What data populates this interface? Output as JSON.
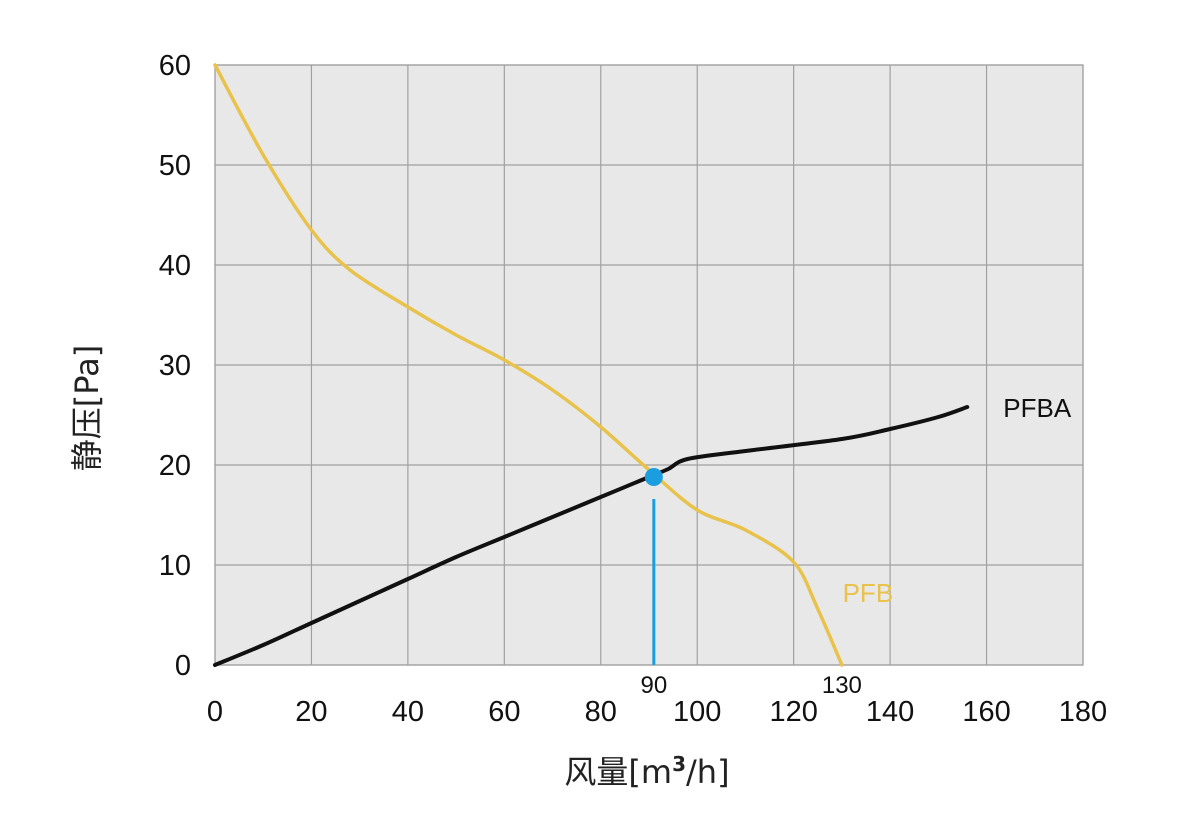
{
  "chart_data": {
    "type": "line",
    "xlabel": "风量[m³/h]",
    "xlabel_parts": {
      "main": "风量[m",
      "sup": "3",
      "tail": "/h]"
    },
    "ylabel": "静压[Pa]",
    "xlim": [
      0,
      180
    ],
    "ylim": [
      0,
      60
    ],
    "xticks": [
      0,
      20,
      40,
      60,
      80,
      100,
      120,
      140,
      160,
      180
    ],
    "yticks": [
      0,
      10,
      20,
      30,
      40,
      50,
      60
    ],
    "grid": true,
    "plot_background": "#e8e8e8",
    "grid_color": "#a0a0a0",
    "series": [
      {
        "name": "PFBA",
        "color": "#111111",
        "x": [
          0,
          10,
          20,
          30,
          40,
          50,
          60,
          70,
          80,
          90,
          94,
          98,
          110,
          130,
          140,
          150,
          156
        ],
        "y": [
          0,
          2,
          4.2,
          6.4,
          8.6,
          10.8,
          12.8,
          14.8,
          16.8,
          18.8,
          19.6,
          20.6,
          21.4,
          22.6,
          23.6,
          24.8,
          25.8
        ]
      },
      {
        "name": "PFB",
        "color": "#e8c24a",
        "x": [
          0,
          10,
          20,
          28,
          40,
          50,
          60,
          70,
          80,
          90,
          100,
          110,
          120,
          125,
          130
        ],
        "y": [
          60,
          51,
          43.5,
          39.5,
          35.8,
          33,
          30.5,
          27.5,
          23.8,
          19.5,
          15.5,
          13.5,
          10.3,
          5.6,
          0
        ]
      }
    ],
    "marker": {
      "x": 91,
      "y": 18.8,
      "color": "#1a9ee0"
    },
    "vline": {
      "x": 91,
      "from_y": 0,
      "to_y": 16.6,
      "color": "#1a9ee0"
    },
    "annotations": [
      {
        "text": "90",
        "x": 91
      },
      {
        "text": "130",
        "x": 130
      }
    ]
  }
}
